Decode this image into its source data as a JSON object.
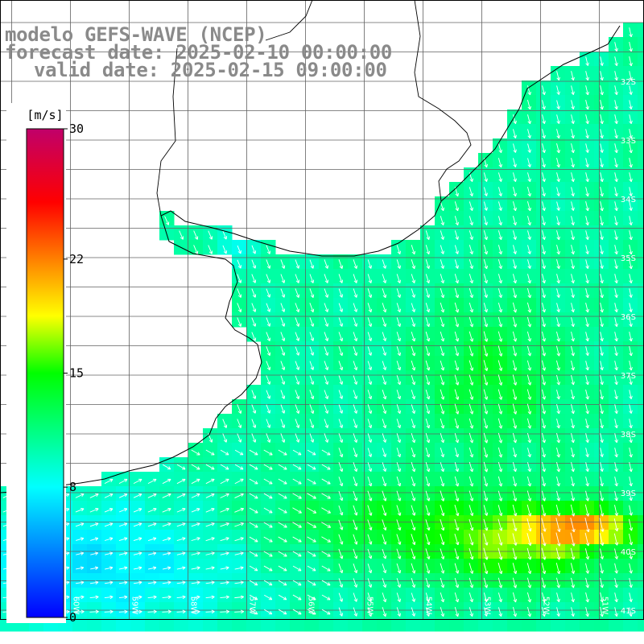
{
  "titles": {
    "model": "modelo GEFS-WAVE (NCEP)",
    "forecast": "forecast date: 2025-02-10 00:00:00",
    "valid": "valid date: 2025-02-15 09:00:00"
  },
  "colorbar": {
    "unit": "[m/s]",
    "ticks": [
      "30",
      "22",
      "15",
      "8",
      "0"
    ],
    "tick_values": [
      30,
      22,
      15,
      8,
      0
    ],
    "min": 0,
    "max": 30,
    "stops": [
      "#0000ff",
      "#00ffff",
      "#00ff00",
      "#ffff00",
      "#ff0000",
      "#c0006a"
    ],
    "stop_values": [
      0,
      8,
      15,
      18.5,
      25.5,
      30
    ]
  },
  "map": {
    "lon_range": [
      -61,
      -50
    ],
    "lat_range": [
      -41.4,
      -29
    ],
    "lat_labels": [
      "32S",
      "33S",
      "34S",
      "35S",
      "36S",
      "37S",
      "38S",
      "39S",
      "40S",
      "41S"
    ],
    "lon_labels": [
      "61W",
      "60W",
      "59W",
      "58W",
      "57W",
      "56W",
      "55W",
      "54W",
      "53W",
      "52W",
      "51W"
    ],
    "grid_color": "#606060",
    "coast_color": "#000000",
    "arrow_color": "#ffffff",
    "land_color": "#ffffff"
  }
}
